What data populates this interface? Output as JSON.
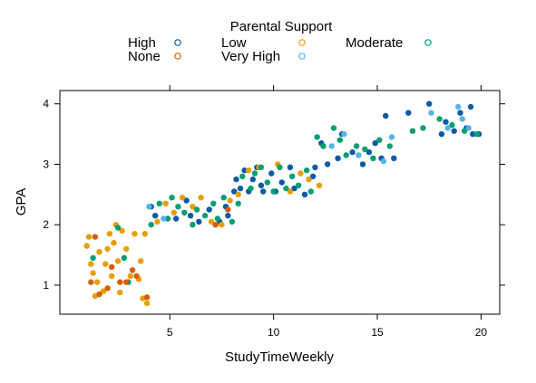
{
  "chart_data": {
    "type": "scatter",
    "xlabel": "StudyTimeWeekly",
    "ylabel": "GPA",
    "xlim": [
      -0.3,
      20.9
    ],
    "ylim": [
      0.52,
      4.22
    ],
    "xticks": [
      5,
      10,
      15,
      20
    ],
    "yticks": [
      1,
      2,
      3,
      4
    ],
    "legend": {
      "title": "Parental Support",
      "placement": "top",
      "columns": 3,
      "marker": "open-circle"
    },
    "series": [
      {
        "name": "High",
        "color": "#0b5aa2",
        "points": [
          [
            4.1,
            2.3
          ],
          [
            4.3,
            2.15
          ],
          [
            5.3,
            2.1
          ],
          [
            5.8,
            2.4
          ],
          [
            6.0,
            2.15
          ],
          [
            6.4,
            2.05
          ],
          [
            6.9,
            2.25
          ],
          [
            7.4,
            2.05
          ],
          [
            7.7,
            2.3
          ],
          [
            7.8,
            2.15
          ],
          [
            8.1,
            2.55
          ],
          [
            8.2,
            2.75
          ],
          [
            8.4,
            2.6
          ],
          [
            8.6,
            2.9
          ],
          [
            8.8,
            2.55
          ],
          [
            9.0,
            2.75
          ],
          [
            9.2,
            2.95
          ],
          [
            9.4,
            2.65
          ],
          [
            9.5,
            2.55
          ],
          [
            9.9,
            2.85
          ],
          [
            10.1,
            2.55
          ],
          [
            10.4,
            2.7
          ],
          [
            10.8,
            2.95
          ],
          [
            11.0,
            2.6
          ],
          [
            11.5,
            2.5
          ],
          [
            11.9,
            2.8
          ],
          [
            12.0,
            2.95
          ],
          [
            12.3,
            3.35
          ],
          [
            12.6,
            3.0
          ],
          [
            13.1,
            3.1
          ],
          [
            13.3,
            3.5
          ],
          [
            13.8,
            3.2
          ],
          [
            14.3,
            3.0
          ],
          [
            14.6,
            3.2
          ],
          [
            14.9,
            3.35
          ],
          [
            15.2,
            3.1
          ],
          [
            15.4,
            3.8
          ],
          [
            15.8,
            3.1
          ],
          [
            16.5,
            3.85
          ],
          [
            17.5,
            4.0
          ],
          [
            18.1,
            3.5
          ],
          [
            18.3,
            3.7
          ],
          [
            18.7,
            3.55
          ],
          [
            19.0,
            3.85
          ],
          [
            19.3,
            3.6
          ],
          [
            19.5,
            3.95
          ],
          [
            19.6,
            3.5
          ],
          [
            19.9,
            3.5
          ]
        ]
      },
      {
        "name": "Low",
        "color": "#e69f00",
        "points": [
          [
            1.0,
            1.65
          ],
          [
            1.1,
            1.8
          ],
          [
            1.2,
            1.35
          ],
          [
            1.3,
            1.2
          ],
          [
            1.5,
            1.05
          ],
          [
            1.6,
            1.55
          ],
          [
            1.8,
            0.9
          ],
          [
            1.9,
            1.35
          ],
          [
            2.0,
            1.6
          ],
          [
            2.1,
            1.85
          ],
          [
            2.2,
            1.15
          ],
          [
            2.3,
            1.7
          ],
          [
            2.4,
            2.0
          ],
          [
            2.5,
            1.4
          ],
          [
            2.7,
            1.9
          ],
          [
            2.9,
            1.6
          ],
          [
            3.1,
            1.15
          ],
          [
            3.3,
            1.85
          ],
          [
            3.5,
            1.1
          ],
          [
            3.6,
            1.4
          ],
          [
            3.8,
            1.85
          ],
          [
            3.9,
            0.7
          ],
          [
            4.4,
            2.05
          ],
          [
            4.8,
            2.35
          ],
          [
            5.2,
            2.2
          ],
          [
            5.6,
            2.45
          ],
          [
            6.1,
            2.3
          ],
          [
            6.5,
            2.45
          ],
          [
            7.0,
            2.05
          ],
          [
            7.5,
            2.0
          ],
          [
            7.9,
            2.4
          ],
          [
            8.3,
            2.5
          ],
          [
            8.8,
            2.9
          ],
          [
            9.3,
            2.95
          ],
          [
            10.2,
            3.0
          ],
          [
            10.8,
            2.55
          ],
          [
            11.3,
            2.85
          ],
          [
            11.7,
            2.75
          ],
          [
            12.2,
            2.65
          ],
          [
            1.4,
            0.82
          ],
          [
            2.6,
            0.88
          ],
          [
            3.7,
            0.78
          ]
        ]
      },
      {
        "name": "Moderate",
        "color": "#009e73",
        "points": [
          [
            1.3,
            1.45
          ],
          [
            2.5,
            1.95
          ],
          [
            2.8,
            1.45
          ],
          [
            3.0,
            1.05
          ],
          [
            4.1,
            2.0
          ],
          [
            4.5,
            2.35
          ],
          [
            4.9,
            2.1
          ],
          [
            5.1,
            2.45
          ],
          [
            5.4,
            2.3
          ],
          [
            5.7,
            2.2
          ],
          [
            6.1,
            2.0
          ],
          [
            6.3,
            2.25
          ],
          [
            6.7,
            2.15
          ],
          [
            7.1,
            2.35
          ],
          [
            7.3,
            2.1
          ],
          [
            7.6,
            2.45
          ],
          [
            8.0,
            2.05
          ],
          [
            8.3,
            2.35
          ],
          [
            8.5,
            2.8
          ],
          [
            8.9,
            2.6
          ],
          [
            9.1,
            2.85
          ],
          [
            9.4,
            2.95
          ],
          [
            9.7,
            2.7
          ],
          [
            10.0,
            2.55
          ],
          [
            10.3,
            2.95
          ],
          [
            10.6,
            2.6
          ],
          [
            10.9,
            2.8
          ],
          [
            11.2,
            2.65
          ],
          [
            11.6,
            2.9
          ],
          [
            11.8,
            2.55
          ],
          [
            12.1,
            3.45
          ],
          [
            12.4,
            3.3
          ],
          [
            12.9,
            3.6
          ],
          [
            13.2,
            3.4
          ],
          [
            13.5,
            3.15
          ],
          [
            14.0,
            3.3
          ],
          [
            14.4,
            3.25
          ],
          [
            14.8,
            3.1
          ],
          [
            15.1,
            3.4
          ],
          [
            15.6,
            3.3
          ],
          [
            16.7,
            3.55
          ],
          [
            17.2,
            3.6
          ],
          [
            18.0,
            3.75
          ],
          [
            18.6,
            3.65
          ],
          [
            19.2,
            3.55
          ],
          [
            19.8,
            3.5
          ]
        ]
      },
      {
        "name": "None",
        "color": "#d55e00",
        "points": [
          [
            1.2,
            1.05
          ],
          [
            1.4,
            1.8
          ],
          [
            1.6,
            0.85
          ],
          [
            2.0,
            0.95
          ],
          [
            2.2,
            1.3
          ],
          [
            2.6,
            1.05
          ],
          [
            2.9,
            1.05
          ],
          [
            3.2,
            1.25
          ],
          [
            3.4,
            1.15
          ],
          [
            3.9,
            0.8
          ],
          [
            7.2,
            2.0
          ],
          [
            7.8,
            2.25
          ]
        ]
      },
      {
        "name": "Very High",
        "color": "#56b4e9",
        "points": [
          [
            4.0,
            2.3
          ],
          [
            4.7,
            2.1
          ],
          [
            12.8,
            3.3
          ],
          [
            13.4,
            3.5
          ],
          [
            14.1,
            3.15
          ],
          [
            15.3,
            3.05
          ],
          [
            15.7,
            3.45
          ],
          [
            17.6,
            3.85
          ],
          [
            18.4,
            3.6
          ],
          [
            18.9,
            3.95
          ],
          [
            19.1,
            3.75
          ],
          [
            19.4,
            3.6
          ]
        ]
      }
    ]
  }
}
